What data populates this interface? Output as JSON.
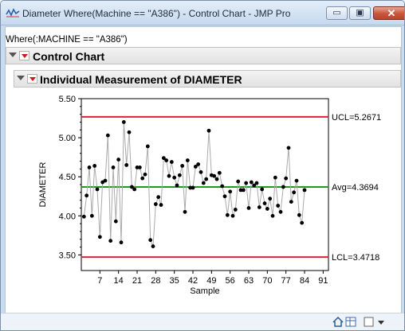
{
  "window": {
    "title": "Diameter Where(Machine == \"A386\") - Control Chart - JMP Pro",
    "minimize": "▭",
    "maximize": "▣",
    "close": "✕"
  },
  "where_clause": "Where(:MACHINE == \"A386\")",
  "outline": {
    "control_chart": "Control Chart",
    "individual": "Individual Measurement of DIAMETER"
  },
  "colors": {
    "ucl": "#d8243a",
    "lcl": "#d8243a",
    "avg": "#1e9a1e",
    "series": "#000000",
    "connector": "#aaaaaa"
  },
  "chart_data": {
    "type": "line",
    "xlabel": "Sample",
    "ylabel": "DIAMETER",
    "xlim": [
      0,
      93
    ],
    "ylim": [
      3.3,
      5.5
    ],
    "xticks": [
      "7",
      "14",
      "21",
      "28",
      "35",
      "42",
      "49",
      "56",
      "63",
      "70",
      "77",
      "84",
      "91"
    ],
    "yticks": [
      "3.50",
      "4.00",
      "4.50",
      "5.00",
      "5.50"
    ],
    "limits": [
      {
        "name": "UCL",
        "label": "UCL=5.2671",
        "value": 5.2671
      },
      {
        "name": "Avg",
        "label": "Avg=4.3694",
        "value": 4.3694
      },
      {
        "name": "LCL",
        "label": "LCL=3.4718",
        "value": 3.4718
      }
    ],
    "series": [
      {
        "values": [
          3.99,
          4.26,
          4.62,
          4.0,
          4.64,
          4.34,
          3.73,
          4.43,
          4.45,
          5.03,
          3.68,
          4.62,
          3.93,
          4.72,
          3.66,
          5.2,
          4.65,
          5.07,
          4.37,
          4.34,
          4.62,
          4.62,
          4.48,
          4.53,
          4.89,
          3.69,
          3.61,
          4.15,
          4.24,
          4.14,
          4.74,
          4.71,
          4.51,
          4.69,
          4.49,
          4.39,
          4.52,
          4.64,
          4.05,
          4.71,
          4.36,
          4.36,
          4.63,
          4.66,
          4.56,
          4.42,
          4.47,
          5.09,
          4.52,
          4.51,
          4.47,
          4.55,
          4.38,
          4.25,
          4.01,
          4.31,
          4.0,
          4.08,
          4.44,
          4.33,
          4.33,
          4.42,
          4.1,
          4.43,
          4.39,
          4.42,
          4.11,
          4.34,
          4.16,
          4.09,
          4.22,
          4.0,
          4.49,
          4.13,
          4.05,
          4.37,
          4.48,
          4.87,
          4.18,
          4.3,
          4.45,
          4.01,
          3.91,
          4.33
        ]
      }
    ]
  }
}
